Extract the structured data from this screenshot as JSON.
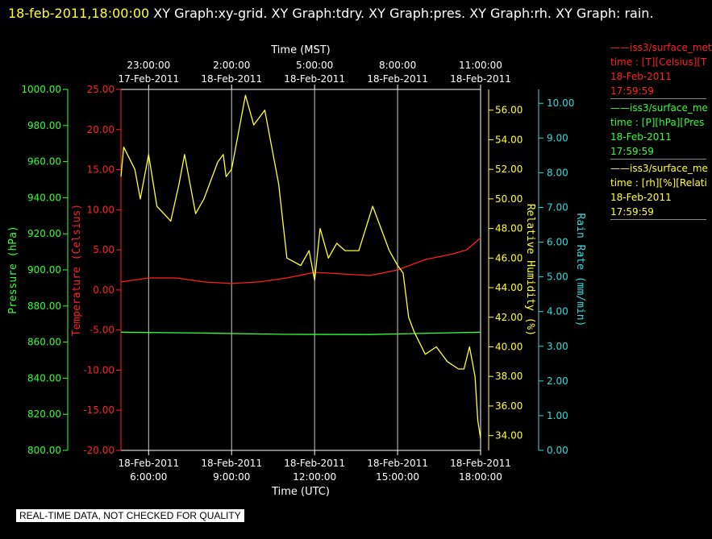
{
  "header": {
    "timestamp": "18-feb-2011,18:00:00",
    "rest": "  XY Graph:xy-grid.  XY Graph:tdry.  XY Graph:pres.  XY Graph:rh.  XY Graph: rain."
  },
  "legend": [
    {
      "series": "iss3/surface_met",
      "units": "time : [T][Celsius][T",
      "date": "18-Feb-2011",
      "time": "17:59:59",
      "color": "#ff2020"
    },
    {
      "series": "iss3/surface_me",
      "units": "time : [P][hPa][Pres",
      "date": "18-Feb-2011",
      "time": "17:59:59",
      "color": "#33ff33"
    },
    {
      "series": "iss3/surface_me",
      "units": "time : [rh][%][Relati",
      "date": "18-Feb-2011",
      "time": "17:59:59",
      "color": "#ffff33"
    }
  ],
  "footer_note": "REAL-TIME DATA, NOT CHECKED FOR QUALITY",
  "chart_data": {
    "type": "line",
    "top_axis_title": "Time (MST)",
    "bottom_axis_title": "Time (UTC)",
    "x_range_utc_hours": [
      5.0,
      18.0
    ],
    "bottom_ticks": [
      {
        "x": 6,
        "date": "18-Feb-2011",
        "time": "6:00:00"
      },
      {
        "x": 9,
        "date": "18-Feb-2011",
        "time": "9:00:00"
      },
      {
        "x": 12,
        "date": "18-Feb-2011",
        "time": "12:00:00"
      },
      {
        "x": 15,
        "date": "18-Feb-2011",
        "time": "15:00:00"
      },
      {
        "x": 18,
        "date": "18-Feb-2011",
        "time": "18:00:00"
      }
    ],
    "top_ticks": [
      {
        "x": 6,
        "time": "23:00:00",
        "date": "17-Feb-2011"
      },
      {
        "x": 9,
        "time": "2:00:00",
        "date": "18-Feb-2011"
      },
      {
        "x": 12,
        "time": "5:00:00",
        "date": "18-Feb-2011"
      },
      {
        "x": 15,
        "time": "8:00:00",
        "date": "18-Feb-2011"
      },
      {
        "x": 18,
        "time": "11:00:00",
        "date": "18-Feb-2011"
      }
    ],
    "axes": {
      "pressure": {
        "label": "Pressure (hPa)",
        "color": "#33ff33",
        "range": [
          800,
          1000
        ],
        "ticks": [
          "800.00",
          "820.00",
          "840.00",
          "860.00",
          "880.00",
          "900.00",
          "920.00",
          "940.00",
          "960.00",
          "980.00",
          "1000.00"
        ]
      },
      "temperature": {
        "label": "Temperature (Celsius)",
        "color": "#ff2020",
        "range": [
          -20,
          25
        ],
        "ticks": [
          "-20.00",
          "-15.00",
          "-10.00",
          "-5.00",
          "0.00",
          "5.00",
          "10.00",
          "15.00",
          "20.00",
          "25.00"
        ]
      },
      "humidity": {
        "label": "Relative Humidity (%)",
        "color": "#ffff33",
        "range": [
          33,
          57.4
        ],
        "ticks": [
          "34.00",
          "36.00",
          "38.00",
          "40.00",
          "42.00",
          "44.00",
          "46.00",
          "48.00",
          "50.00",
          "52.00",
          "54.00",
          "56.00"
        ]
      },
      "rain": {
        "label": "Rain Rate (mm/min)",
        "color": "#33dddd",
        "range": [
          0,
          10.4
        ],
        "ticks": [
          "0.00",
          "1.00",
          "2.00",
          "3.00",
          "4.00",
          "5.00",
          "6.00",
          "7.00",
          "8.00",
          "9.00",
          "10.00"
        ]
      }
    },
    "series": [
      {
        "name": "Temperature",
        "axis": "temperature",
        "color": "#ff2020",
        "x": [
          5.0,
          6.0,
          7.0,
          8.0,
          9.0,
          10.0,
          11.0,
          12.0,
          13.0,
          14.0,
          15.0,
          16.0,
          17.0,
          17.5,
          18.0
        ],
        "y": [
          1.0,
          1.5,
          1.5,
          1.0,
          0.8,
          1.0,
          1.5,
          2.2,
          2.0,
          1.8,
          2.5,
          3.8,
          4.5,
          5.0,
          6.5
        ]
      },
      {
        "name": "Pressure",
        "axis": "pressure",
        "color": "#33ff33",
        "x": [
          5.0,
          8.0,
          11.0,
          14.0,
          18.0
        ],
        "y": [
          865.5,
          865.0,
          864.3,
          864.2,
          865.5
        ]
      },
      {
        "name": "Relative Humidity",
        "axis": "humidity",
        "color": "#ffff33",
        "x": [
          5.0,
          5.1,
          5.5,
          5.7,
          6.0,
          6.3,
          6.8,
          7.1,
          7.3,
          7.7,
          8.0,
          8.5,
          8.7,
          8.8,
          9.0,
          9.5,
          9.8,
          10.2,
          10.7,
          11.0,
          11.5,
          11.8,
          12.0,
          12.2,
          12.5,
          12.8,
          13.1,
          13.6,
          14.1,
          14.3,
          14.7,
          15.0,
          15.2,
          15.4,
          15.6,
          16.0,
          16.4,
          16.8,
          17.2,
          17.4,
          17.6,
          17.8,
          17.9,
          18.0
        ],
        "y": [
          51.5,
          53.5,
          52.0,
          50.0,
          53.0,
          49.5,
          48.5,
          51.0,
          53.0,
          49.0,
          50.0,
          52.5,
          53.0,
          51.5,
          52.0,
          57.0,
          55.0,
          56.0,
          51.0,
          46.0,
          45.5,
          46.5,
          44.5,
          48.0,
          46.0,
          47.0,
          46.5,
          46.5,
          49.5,
          48.5,
          46.5,
          45.5,
          45.0,
          42.0,
          41.0,
          39.5,
          40.0,
          39.0,
          38.5,
          38.5,
          40.0,
          38.0,
          35.0,
          33.8
        ]
      },
      {
        "name": "Rain Rate",
        "axis": "rain",
        "color": "#33dddd",
        "x": [],
        "y": []
      }
    ]
  }
}
